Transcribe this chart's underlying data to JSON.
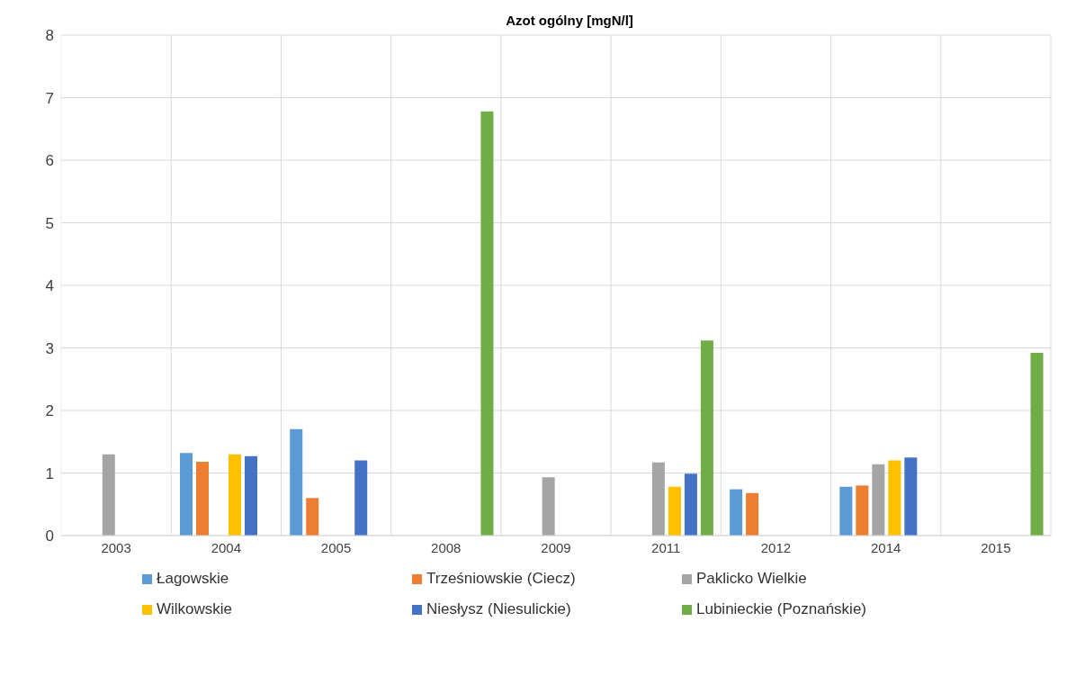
{
  "chart_data": {
    "type": "bar",
    "title": "Azot ogólny  [mgN/l]",
    "categories": [
      "2003",
      "2004",
      "2005",
      "2008",
      "2009",
      "2011",
      "2012",
      "2014",
      "2015"
    ],
    "series": [
      {
        "name": "Łagowskie",
        "color": "#5b9bd5",
        "values": [
          null,
          1.32,
          1.7,
          null,
          null,
          null,
          0.74,
          0.78,
          null
        ]
      },
      {
        "name": "Trześniowskie (Ciecz)",
        "color": "#ed7d31",
        "values": [
          null,
          1.18,
          0.6,
          null,
          null,
          null,
          0.68,
          0.8,
          null
        ]
      },
      {
        "name": "Paklicko Wielkie",
        "color": "#a5a5a5",
        "values": [
          1.3,
          null,
          null,
          null,
          0.93,
          1.17,
          null,
          1.14,
          null
        ]
      },
      {
        "name": "Wilkowskie",
        "color": "#ffc000",
        "values": [
          null,
          1.3,
          null,
          null,
          null,
          0.78,
          null,
          1.2,
          null
        ]
      },
      {
        "name": "Niesłysz (Niesulickie)",
        "color": "#4472c4",
        "values": [
          null,
          1.27,
          1.2,
          null,
          null,
          0.99,
          null,
          1.25,
          null
        ]
      },
      {
        "name": "Lubinieckie (Poznańskie)",
        "color": "#70ad47",
        "values": [
          null,
          null,
          null,
          6.78,
          null,
          3.12,
          null,
          null,
          2.92
        ]
      }
    ],
    "ylim": [
      0,
      8
    ],
    "yticks": [
      0,
      1,
      2,
      3,
      4,
      5,
      6,
      7,
      8
    ],
    "grid": true,
    "legend": "bottom"
  }
}
